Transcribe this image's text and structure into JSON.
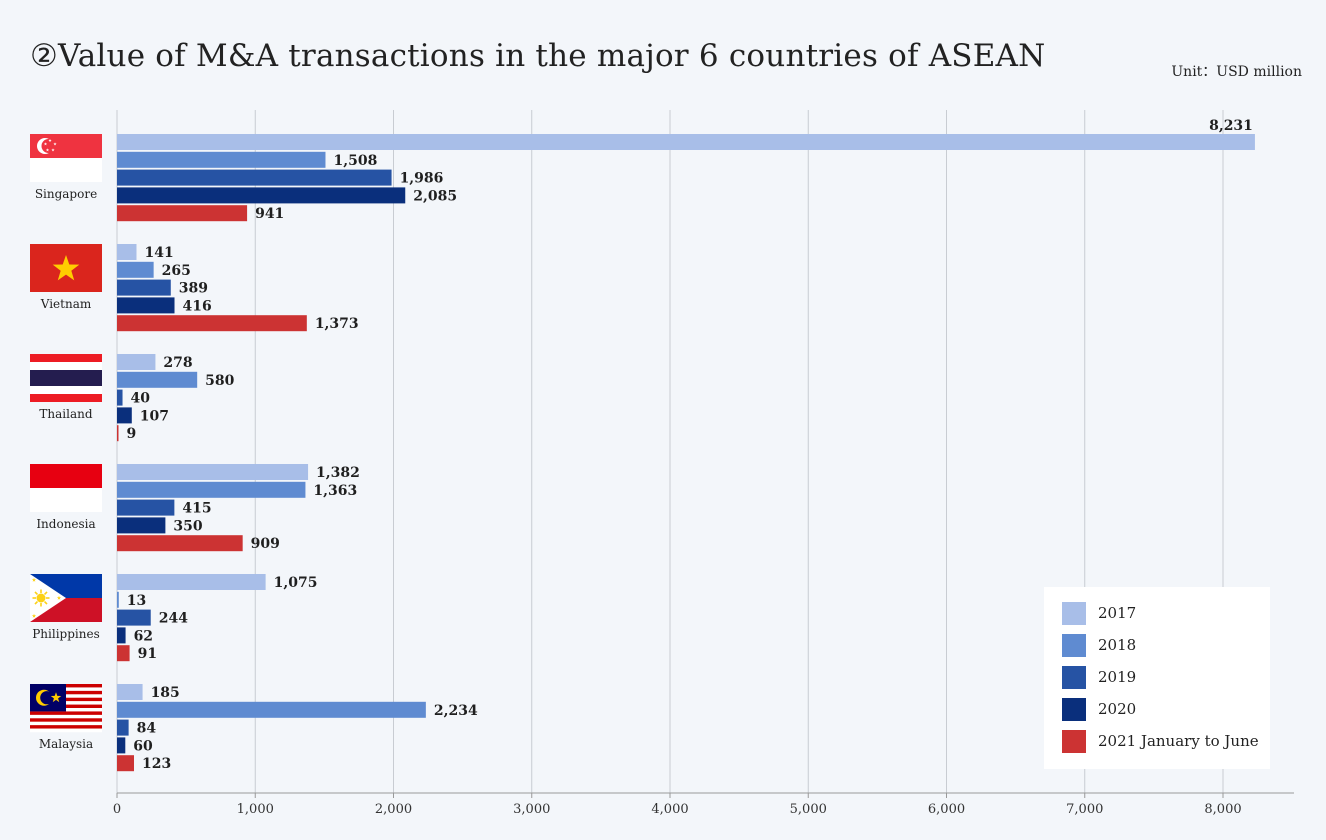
{
  "title": "②Value of M&A transactions in the major 6 countries of ASEAN",
  "unit": "Unit：USD million",
  "colors": {
    "s2017": "#a8bee8",
    "s2018": "#5f8bd1",
    "s2019": "#2653a4",
    "s2020": "#0a2f7c",
    "s2021": "#cc3333",
    "grid": "#c8ccd2"
  },
  "chart_data": {
    "type": "bar",
    "orientation": "horizontal",
    "title": "②Value of M&A transactions in the major 6 countries of ASEAN",
    "unit": "Unit：USD million",
    "xlim": [
      0,
      8500
    ],
    "xticks": [
      "0",
      "1,000",
      "2,000",
      "3,000",
      "4,000",
      "5,000",
      "6,000",
      "7,000",
      "8,000"
    ],
    "grid": true,
    "legend_position": "bottom-right",
    "categories": [
      "Singapore",
      "Vietnam",
      "Thailand",
      "Indonesia",
      "Philippines",
      "Malaysia"
    ],
    "series": [
      {
        "name": "2017",
        "values": [
          8231,
          141,
          278,
          1382,
          1075,
          185
        ],
        "labels": [
          "8,231",
          "141",
          "278",
          "1,382",
          "1,075",
          "185"
        ]
      },
      {
        "name": "2018",
        "values": [
          1508,
          265,
          580,
          1363,
          13,
          2234
        ],
        "labels": [
          "1,508",
          "265",
          "580",
          "1,363",
          "13",
          "2,234"
        ]
      },
      {
        "name": "2019",
        "values": [
          1986,
          389,
          40,
          415,
          244,
          84
        ],
        "labels": [
          "1,986",
          "389",
          "40",
          "415",
          "244",
          "84"
        ]
      },
      {
        "name": "2020",
        "values": [
          2085,
          416,
          107,
          350,
          62,
          60
        ],
        "labels": [
          "2,085",
          "416",
          "107",
          "350",
          "62",
          "60"
        ]
      },
      {
        "name": "2021 January to June",
        "values": [
          941,
          1373,
          9,
          909,
          91,
          123
        ],
        "labels": [
          "941",
          "1,373",
          "9",
          "909",
          "91",
          "123"
        ]
      }
    ]
  },
  "flags": [
    "singapore-flag-icon",
    "vietnam-flag-icon",
    "thailand-flag-icon",
    "indonesia-flag-icon",
    "philippines-flag-icon",
    "malaysia-flag-icon"
  ]
}
